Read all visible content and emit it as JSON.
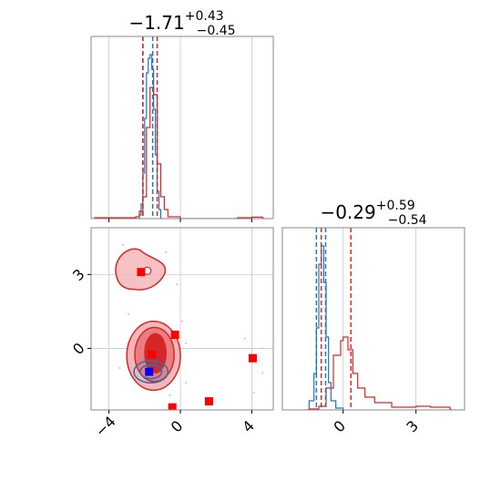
{
  "chart_data": {
    "type": "corner",
    "parameters": [
      {
        "index": 0,
        "title": {
          "median": "−1.71",
          "plus": "+0.43",
          "minus": "−0.45"
        }
      },
      {
        "index": 1,
        "title": {
          "median": "−0.29",
          "plus": "+0.59",
          "minus": "−0.54"
        }
      }
    ],
    "axes": {
      "x0_range": [
        -5.0,
        5.2
      ],
      "x1_range": [
        -2.5,
        5.0
      ],
      "y1_range": [
        -2.5,
        4.9
      ],
      "x0_ticks": [
        {
          "value": -4,
          "label": "−4"
        },
        {
          "value": 0,
          "label": "0"
        },
        {
          "value": 4,
          "label": "4"
        }
      ],
      "x1_ticks": [
        {
          "value": 0,
          "label": "0"
        },
        {
          "value": 3,
          "label": "3"
        }
      ],
      "y1_ticks": [
        {
          "value": 0,
          "label": "0"
        },
        {
          "value": 3,
          "label": "3"
        }
      ],
      "grid": true
    },
    "series": [
      {
        "color": "#1f77b4",
        "quantiles_p0": [
          -2.1,
          -1.55
        ],
        "quantiles_p1": [
          -1.1,
          -0.72
        ]
      },
      {
        "color": "#d62728",
        "quantiles_p0": [
          -2.1,
          -1.3
        ],
        "quantiles_p1": [
          -0.9,
          0.32
        ]
      }
    ],
    "hist_p0": [
      {
        "color": "#1f77b4",
        "x": [
          -2.4,
          -2.3,
          -2.2,
          -2.1,
          -2.0,
          -1.9,
          -1.8,
          -1.7,
          -1.6,
          -1.5,
          -1.4,
          -1.3,
          -1.2,
          -1.1
        ],
        "y": [
          0,
          0.02,
          0.08,
          0.25,
          0.55,
          0.8,
          0.88,
          0.9,
          0.82,
          0.6,
          0.35,
          0.15,
          0.05,
          0
        ]
      },
      {
        "color": "#d62728",
        "x": [
          -4.8,
          -2.5,
          -2.3,
          -2.1,
          -1.9,
          -1.7,
          -1.5,
          -1.3,
          -1.1,
          -0.9,
          -0.7,
          0.0,
          3.2,
          4.0,
          4.6
        ],
        "y": [
          0.005,
          0.01,
          0.04,
          0.12,
          0.5,
          0.72,
          0.68,
          0.3,
          0.12,
          0.05,
          0.01,
          0.0,
          0.005,
          0.008,
          0.005
        ]
      }
    ],
    "hist_p1": [
      {
        "color": "#1f77b4",
        "x": [
          -1.6,
          -1.4,
          -1.2,
          -1.1,
          -1.0,
          -0.9,
          -0.8,
          -0.7,
          -0.6,
          -0.5,
          -0.3,
          0.0
        ],
        "y": [
          0,
          0.05,
          0.2,
          0.45,
          0.8,
          0.9,
          0.7,
          0.4,
          0.15,
          0.05,
          0.01,
          0
        ]
      },
      {
        "color": "#d62728",
        "x": [
          -1.4,
          -1.0,
          -0.7,
          -0.4,
          -0.1,
          0.0,
          0.2,
          0.4,
          0.6,
          0.9,
          1.3,
          2.0,
          3.0,
          3.6,
          4.4
        ],
        "y": [
          0.005,
          0.02,
          0.12,
          0.3,
          0.38,
          0.4,
          0.33,
          0.2,
          0.12,
          0.07,
          0.04,
          0.015,
          0.02,
          0.015,
          0.005
        ]
      }
    ],
    "markers": [
      {
        "color": "#ff0000",
        "x": -2.2,
        "y": 3.1
      },
      {
        "color": "#ff0000",
        "x": -0.3,
        "y": 0.55
      },
      {
        "color": "#ff0000",
        "x": -1.6,
        "y": -0.25
      },
      {
        "color": "#ff0000",
        "x": 4.05,
        "y": -0.4
      },
      {
        "color": "#ff0000",
        "x": 1.6,
        "y": -2.15
      },
      {
        "color": "#ff0000",
        "x": -0.45,
        "y": -2.4
      },
      {
        "color": "#0000ff",
        "x": -1.75,
        "y": -0.95
      }
    ]
  }
}
